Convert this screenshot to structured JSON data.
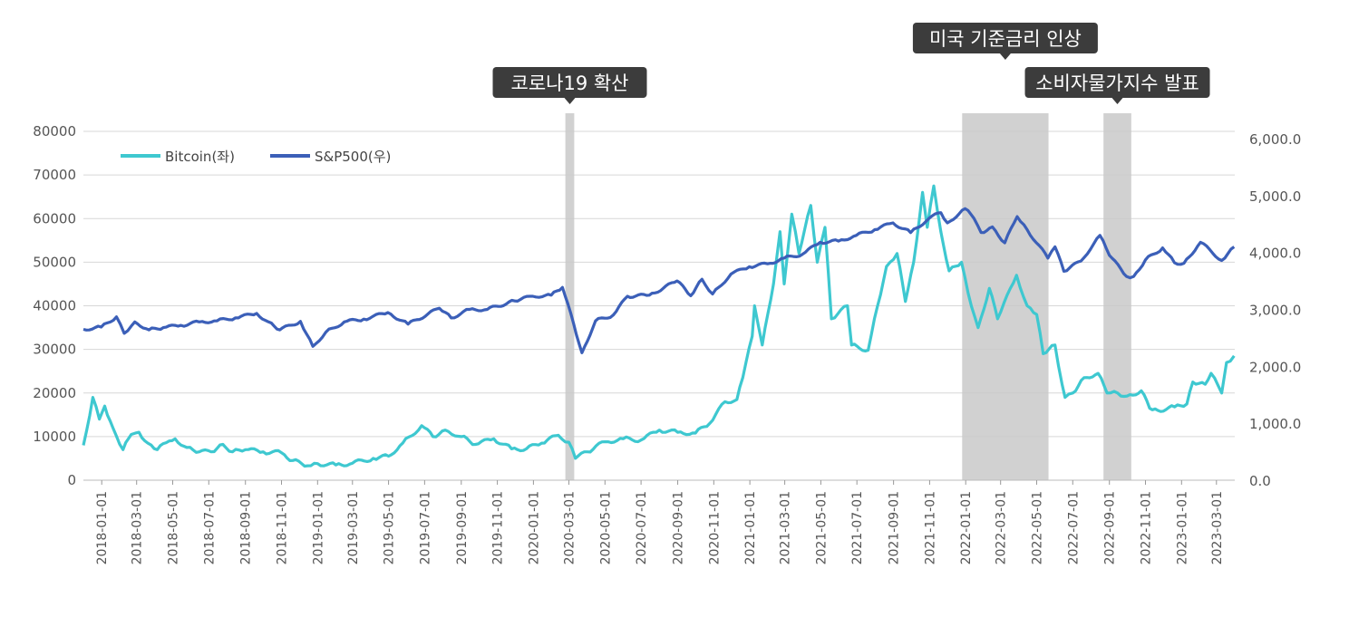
{
  "chart_data": {
    "type": "line",
    "title": "",
    "xlabel": "",
    "ylabel": "",
    "x_ticks": [
      "2018-01-01",
      "2018-03-01",
      "2018-05-01",
      "2018-07-01",
      "2018-09-01",
      "2018-11-01",
      "2019-01-01",
      "2019-03-01",
      "2019-05-01",
      "2019-07-01",
      "2019-09-01",
      "2019-11-01",
      "2020-01-01",
      "2020-03-01",
      "2020-05-01",
      "2020-07-01",
      "2020-09-01",
      "2020-11-01",
      "2021-01-01",
      "2021-03-01",
      "2021-05-01",
      "2021-07-01",
      "2021-09-01",
      "2021-11-01",
      "2022-01-01",
      "2022-03-01",
      "2022-05-01",
      "2022-07-01",
      "2022-09-01",
      "2022-11-01",
      "2023-01-01",
      "2023-03-01"
    ],
    "x_range": [
      "2017-12-01",
      "2023-04-01"
    ],
    "y_left": {
      "min": 0,
      "max": 80000,
      "ticks": [
        "0",
        "10000",
        "20000",
        "30000",
        "40000",
        "50000",
        "60000",
        "70000",
        "80000"
      ]
    },
    "y_right": {
      "min": 0,
      "max": 6000,
      "ticks": [
        "0.0",
        "1,000.0",
        "2,000.0",
        "3,000.0",
        "4,000.0",
        "5,000.0",
        "6,000.0"
      ]
    },
    "grid": true,
    "legend_position": "top-left",
    "series": [
      {
        "name": "Bitcoin(좌)",
        "axis": "left",
        "color": "#3ec8d0",
        "points": [
          [
            "2017-12-01",
            8000
          ],
          [
            "2017-12-17",
            19000
          ],
          [
            "2017-12-28",
            14000
          ],
          [
            "2018-01-06",
            17000
          ],
          [
            "2018-01-20",
            12000
          ],
          [
            "2018-02-06",
            7000
          ],
          [
            "2018-02-20",
            10500
          ],
          [
            "2018-03-05",
            11000
          ],
          [
            "2018-03-20",
            8500
          ],
          [
            "2018-04-05",
            7000
          ],
          [
            "2018-04-25",
            9000
          ],
          [
            "2018-05-05",
            9500
          ],
          [
            "2018-05-25",
            7500
          ],
          [
            "2018-06-15",
            6500
          ],
          [
            "2018-07-05",
            6500
          ],
          [
            "2018-07-25",
            8200
          ],
          [
            "2018-08-10",
            6500
          ],
          [
            "2018-09-01",
            7000
          ],
          [
            "2018-10-01",
            6500
          ],
          [
            "2018-11-01",
            6300
          ],
          [
            "2018-11-20",
            4500
          ],
          [
            "2018-12-15",
            3300
          ],
          [
            "2019-01-01",
            3800
          ],
          [
            "2019-02-01",
            3500
          ],
          [
            "2019-03-01",
            3900
          ],
          [
            "2019-04-05",
            5000
          ],
          [
            "2019-05-01",
            5500
          ],
          [
            "2019-05-25",
            8500
          ],
          [
            "2019-06-26",
            12500
          ],
          [
            "2019-07-15",
            10000
          ],
          [
            "2019-08-05",
            11500
          ],
          [
            "2019-09-01",
            10000
          ],
          [
            "2019-09-25",
            8200
          ],
          [
            "2019-10-26",
            9500
          ],
          [
            "2019-11-25",
            7200
          ],
          [
            "2019-12-20",
            7200
          ],
          [
            "2020-01-15",
            8500
          ],
          [
            "2020-02-12",
            10300
          ],
          [
            "2020-03-01",
            8700
          ],
          [
            "2020-03-12",
            5000
          ],
          [
            "2020-04-01",
            6500
          ],
          [
            "2020-05-01",
            8800
          ],
          [
            "2020-06-01",
            9500
          ],
          [
            "2020-07-01",
            9200
          ],
          [
            "2020-08-01",
            11500
          ],
          [
            "2020-09-01",
            11000
          ],
          [
            "2020-10-01",
            10800
          ],
          [
            "2020-10-25",
            13000
          ],
          [
            "2020-11-20",
            18000
          ],
          [
            "2020-12-10",
            18500
          ],
          [
            "2020-12-20",
            23500
          ],
          [
            "2021-01-05",
            33000
          ],
          [
            "2021-01-09",
            40000
          ],
          [
            "2021-01-22",
            31000
          ],
          [
            "2021-02-10",
            45000
          ],
          [
            "2021-02-21",
            57000
          ],
          [
            "2021-02-28",
            45000
          ],
          [
            "2021-03-13",
            61000
          ],
          [
            "2021-03-25",
            52000
          ],
          [
            "2021-04-14",
            63000
          ],
          [
            "2021-04-25",
            50000
          ],
          [
            "2021-05-08",
            58000
          ],
          [
            "2021-05-19",
            37000
          ],
          [
            "2021-06-15",
            40000
          ],
          [
            "2021-06-22",
            31000
          ],
          [
            "2021-07-20",
            29800
          ],
          [
            "2021-08-05",
            40000
          ],
          [
            "2021-08-20",
            49000
          ],
          [
            "2021-09-07",
            52000
          ],
          [
            "2021-09-21",
            41000
          ],
          [
            "2021-10-05",
            50000
          ],
          [
            "2021-10-20",
            66000
          ],
          [
            "2021-10-28",
            58000
          ],
          [
            "2021-11-08",
            67500
          ],
          [
            "2021-11-20",
            57000
          ],
          [
            "2021-12-04",
            48000
          ],
          [
            "2021-12-25",
            50000
          ],
          [
            "2022-01-05",
            43000
          ],
          [
            "2022-01-22",
            35000
          ],
          [
            "2022-02-10",
            44000
          ],
          [
            "2022-02-24",
            37000
          ],
          [
            "2022-03-28",
            47000
          ],
          [
            "2022-04-15",
            40000
          ],
          [
            "2022-05-01",
            38000
          ],
          [
            "2022-05-12",
            29000
          ],
          [
            "2022-06-01",
            31000
          ],
          [
            "2022-06-13",
            22000
          ],
          [
            "2022-06-18",
            19000
          ],
          [
            "2022-07-01",
            20000
          ],
          [
            "2022-07-20",
            23500
          ],
          [
            "2022-08-13",
            24500
          ],
          [
            "2022-08-28",
            20000
          ],
          [
            "2022-09-15",
            20000
          ],
          [
            "2022-10-01",
            19300
          ],
          [
            "2022-10-25",
            20500
          ],
          [
            "2022-11-08",
            16500
          ],
          [
            "2022-11-22",
            16000
          ],
          [
            "2022-12-20",
            16800
          ],
          [
            "2023-01-10",
            17500
          ],
          [
            "2023-01-20",
            22500
          ],
          [
            "2023-02-10",
            22000
          ],
          [
            "2023-02-20",
            24500
          ],
          [
            "2023-03-10",
            20000
          ],
          [
            "2023-03-18",
            27000
          ],
          [
            "2023-03-31",
            28500
          ]
        ]
      },
      {
        "name": "S&P500(우)",
        "axis": "right",
        "color": "#3b5fb8",
        "points": [
          [
            "2017-12-01",
            2650
          ],
          [
            "2017-12-31",
            2690
          ],
          [
            "2018-01-26",
            2870
          ],
          [
            "2018-02-08",
            2580
          ],
          [
            "2018-02-26",
            2780
          ],
          [
            "2018-03-22",
            2640
          ],
          [
            "2018-04-15",
            2680
          ],
          [
            "2018-05-15",
            2720
          ],
          [
            "2018-06-15",
            2780
          ],
          [
            "2018-07-15",
            2800
          ],
          [
            "2018-08-15",
            2850
          ],
          [
            "2018-09-20",
            2930
          ],
          [
            "2018-10-10",
            2780
          ],
          [
            "2018-10-29",
            2640
          ],
          [
            "2018-12-03",
            2790
          ],
          [
            "2018-12-24",
            2350
          ],
          [
            "2019-01-15",
            2600
          ],
          [
            "2019-02-15",
            2780
          ],
          [
            "2019-03-20",
            2830
          ],
          [
            "2019-04-30",
            2945
          ],
          [
            "2019-06-03",
            2740
          ],
          [
            "2019-07-26",
            3020
          ],
          [
            "2019-08-15",
            2850
          ],
          [
            "2019-09-15",
            3000
          ],
          [
            "2019-10-15",
            3000
          ],
          [
            "2019-11-30",
            3150
          ],
          [
            "2019-12-31",
            3230
          ],
          [
            "2020-01-31",
            3250
          ],
          [
            "2020-02-19",
            3386
          ],
          [
            "2020-03-09",
            2750
          ],
          [
            "2020-03-23",
            2237
          ],
          [
            "2020-04-15",
            2800
          ],
          [
            "2020-05-15",
            2900
          ],
          [
            "2020-06-08",
            3230
          ],
          [
            "2020-07-15",
            3250
          ],
          [
            "2020-08-31",
            3500
          ],
          [
            "2020-09-23",
            3240
          ],
          [
            "2020-10-12",
            3530
          ],
          [
            "2020-10-30",
            3270
          ],
          [
            "2020-11-30",
            3620
          ],
          [
            "2020-12-31",
            3750
          ],
          [
            "2021-01-31",
            3800
          ],
          [
            "2021-02-28",
            3900
          ],
          [
            "2021-03-31",
            3970
          ],
          [
            "2021-04-30",
            4180
          ],
          [
            "2021-05-31",
            4200
          ],
          [
            "2021-06-30",
            4300
          ],
          [
            "2021-07-31",
            4400
          ],
          [
            "2021-08-31",
            4520
          ],
          [
            "2021-09-30",
            4350
          ],
          [
            "2021-10-31",
            4600
          ],
          [
            "2021-11-20",
            4700
          ],
          [
            "2021-12-01",
            4520
          ],
          [
            "2021-12-31",
            4770
          ],
          [
            "2022-01-15",
            4600
          ],
          [
            "2022-01-27",
            4350
          ],
          [
            "2022-02-15",
            4450
          ],
          [
            "2022-03-08",
            4170
          ],
          [
            "2022-03-29",
            4630
          ],
          [
            "2022-04-15",
            4400
          ],
          [
            "2022-05-20",
            3900
          ],
          [
            "2022-06-01",
            4100
          ],
          [
            "2022-06-16",
            3670
          ],
          [
            "2022-07-15",
            3850
          ],
          [
            "2022-08-16",
            4300
          ],
          [
            "2022-09-01",
            3950
          ],
          [
            "2022-09-30",
            3580
          ],
          [
            "2022-10-12",
            3580
          ],
          [
            "2022-11-01",
            3870
          ],
          [
            "2022-11-30",
            4080
          ],
          [
            "2022-12-20",
            3820
          ],
          [
            "2023-01-05",
            3810
          ],
          [
            "2023-02-02",
            4180
          ],
          [
            "2023-03-10",
            3860
          ],
          [
            "2023-03-31",
            4100
          ]
        ]
      }
    ],
    "shaded_periods": [
      {
        "start": "2020-02-24",
        "end": "2020-03-10"
      },
      {
        "start": "2021-12-26",
        "end": "2022-05-21"
      },
      {
        "start": "2022-08-22",
        "end": "2022-10-08"
      }
    ],
    "annotations": [
      {
        "text": "코로나19 확산",
        "period": 0,
        "level": 2
      },
      {
        "text": "미국 기준금리 인상",
        "period": 1,
        "level": 1
      },
      {
        "text": "소비자물가지수 발표",
        "period": 2,
        "level": 2
      }
    ]
  }
}
